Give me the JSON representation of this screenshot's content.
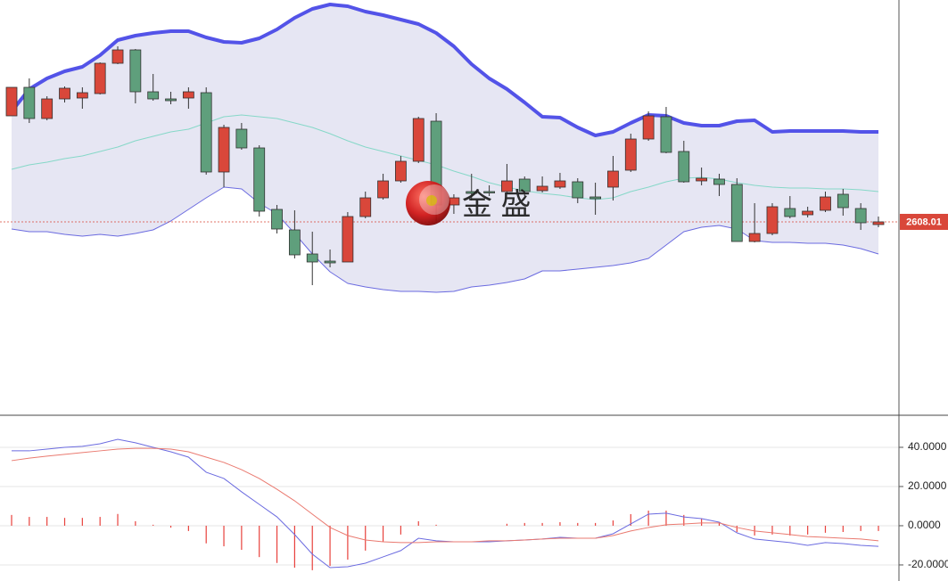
{
  "chart_data": [
    {
      "type": "candlestick",
      "candles": {
        "open": [
          2667.5,
          2683.5,
          2666,
          2677,
          2677.5,
          2680,
          2697,
          2704.5,
          2681,
          2677,
          2677.5,
          2680.5,
          2636,
          2660,
          2649.5,
          2615,
          2603.5,
          2590,
          2586,
          2585.5,
          2611,
          2621.5,
          2631,
          2642,
          2664.5,
          2617.5,
          2625,
          2625,
          2625,
          2632,
          2625.5,
          2627.5,
          2630.5,
          2622,
          2627.5,
          2637,
          2654.5,
          2667,
          2647.5,
          2631,
          2632,
          2629,
          2597,
          2601.5,
          2615.5,
          2612,
          2614.5,
          2623.5,
          2615.5,
          2606.5
        ],
        "high": [
          2683.5,
          2688.5,
          2678.5,
          2684,
          2683.5,
          2697.5,
          2706.5,
          2705,
          2691,
          2681,
          2683.5,
          2683.5,
          2662.5,
          2663.5,
          2651,
          2617.5,
          2614.5,
          2602.5,
          2592.5,
          2613.5,
          2625,
          2635,
          2645,
          2667,
          2669,
          2623.5,
          2635,
          2628.5,
          2640.5,
          2633.5,
          2633.5,
          2635.5,
          2632.5,
          2630,
          2645,
          2657.5,
          2670,
          2672.5,
          2653.5,
          2638.5,
          2635,
          2632.5,
          2618.5,
          2618.5,
          2622.5,
          2616.5,
          2625,
          2626.5,
          2618.5,
          2611
        ],
        "low": [
          2667.5,
          2663.5,
          2665,
          2675,
          2671.5,
          2679.5,
          2696.5,
          2674.5,
          2676,
          2674,
          2671.5,
          2634.5,
          2627.5,
          2648.5,
          2611,
          2601.5,
          2587.5,
          2572.5,
          2582.5,
          2585.5,
          2610,
          2620.5,
          2630,
          2641,
          2608.5,
          2612.5,
          2620,
          2622.5,
          2624,
          2622.5,
          2624.5,
          2626.5,
          2618.5,
          2612,
          2620,
          2636,
          2653.5,
          2646.5,
          2630,
          2628.5,
          2622.5,
          2597,
          2596.5,
          2600.5,
          2610,
          2610.5,
          2613.5,
          2611.5,
          2603.5,
          2605
        ],
        "close": [
          2683.5,
          2666,
          2677,
          2683,
          2680.5,
          2697,
          2704.5,
          2681,
          2677,
          2676,
          2681,
          2636,
          2661,
          2649.5,
          2614,
          2604,
          2589.5,
          2585.5,
          2585,
          2611,
          2621.5,
          2631,
          2642,
          2666,
          2617.5,
          2621.5,
          2624,
          2624.5,
          2631,
          2625,
          2628,
          2631,
          2621.5,
          2621,
          2636.5,
          2654.5,
          2667.5,
          2647,
          2630.5,
          2632.5,
          2629,
          2597,
          2601.5,
          2616.5,
          2611,
          2614,
          2622,
          2616,
          2607.5,
          2608.01
        ]
      },
      "up_color": "#d9473a",
      "down_color": "#5f9f7c",
      "band_fill": "#e6e6f3",
      "series": [
        {
          "color": "#5353e8",
          "values": [
            2670,
            2682.5,
            2688.5,
            2692.5,
            2695,
            2701.5,
            2710,
            2712.5,
            2714,
            2715,
            2715,
            2711.5,
            2709,
            2708.5,
            2711,
            2716,
            2722.5,
            2727.5,
            2730,
            2729,
            2726,
            2724,
            2721.5,
            2719,
            2714,
            2706.5,
            2696.5,
            2688.5,
            2682.5,
            2675,
            2667,
            2666.5,
            2661,
            2656.5,
            2658.5,
            2663.5,
            2668,
            2667.5,
            2663.5,
            2662,
            2662,
            2664.5,
            2665,
            2658.5,
            2659,
            2659,
            2659,
            2659,
            2658.5,
            2658.5
          ]
        },
        {
          "color": "#86d8c8",
          "values": [
            2637.5,
            2640,
            2641.5,
            2643.5,
            2645,
            2647.5,
            2650,
            2653.5,
            2656,
            2658.5,
            2660,
            2663.5,
            2667,
            2668,
            2667,
            2666,
            2663.5,
            2661,
            2657.5,
            2653.5,
            2650,
            2647.5,
            2645,
            2642.5,
            2640,
            2636.5,
            2633.5,
            2630,
            2627.5,
            2625.5,
            2624,
            2623,
            2621.5,
            2620.5,
            2621.5,
            2625,
            2627.5,
            2630.5,
            2632.5,
            2633,
            2632,
            2630,
            2628.5,
            2627.5,
            2627,
            2627,
            2626.5,
            2626.5,
            2626,
            2625
          ]
        },
        {
          "color": "#6b6be0",
          "values": [
            2604,
            2602.5,
            2602.5,
            2601,
            2600,
            2601,
            2600,
            2601.5,
            2603.5,
            2608.5,
            2615,
            2621.5,
            2627.5,
            2626.5,
            2618.5,
            2612.5,
            2601.5,
            2590,
            2580,
            2573.5,
            2571.5,
            2570,
            2569,
            2569,
            2568.5,
            2569,
            2571.5,
            2572.5,
            2574,
            2576,
            2580.5,
            2580.5,
            2581.5,
            2582.5,
            2583.5,
            2585,
            2587.5,
            2595,
            2602.5,
            2605,
            2606,
            2604,
            2597.5,
            2596.5,
            2596.5,
            2596,
            2596,
            2595,
            2593,
            2590
          ]
        }
      ],
      "ylim": [
        2500,
        2732.5
      ],
      "last_price": 2608.01,
      "last_price_color": "#d9473a",
      "watermark": "金 盛"
    },
    {
      "type": "macd",
      "histogram": {
        "color": "#e8413c",
        "values": [
          5.5,
          4.5,
          4.5,
          4,
          4,
          4.5,
          6,
          2.3,
          0.5,
          -1,
          -2.7,
          -9,
          -10.5,
          -12.3,
          -16,
          -19,
          -21.4,
          -22.7,
          -20.5,
          -17.3,
          -12.7,
          -8.2,
          -4.5,
          2.3,
          0.5,
          0,
          0,
          0,
          1,
          1.4,
          1.4,
          1.8,
          1.4,
          1.4,
          2.7,
          5.9,
          7.7,
          7.7,
          5.5,
          3.6,
          1.4,
          -3.2,
          -5,
          -4.5,
          -5,
          -4.5,
          -3.6,
          -3.2,
          -2.7,
          -2.7
        ]
      },
      "series": [
        {
          "color": "#6b6be0",
          "values": [
            38.2,
            38.2,
            39.1,
            40,
            40.5,
            41.8,
            44.1,
            42.3,
            40,
            37.7,
            35,
            27.3,
            24.1,
            17.3,
            10.9,
            4.5,
            -4.5,
            -14.5,
            -21.4,
            -20.9,
            -19.1,
            -15.9,
            -12.7,
            -6.4,
            -7.7,
            -8.2,
            -8.2,
            -8.2,
            -7.7,
            -7.3,
            -6.8,
            -5.9,
            -6.4,
            -6.4,
            -4.1,
            0.9,
            5.9,
            6.4,
            4.5,
            3.6,
            1.8,
            -3.6,
            -6.8,
            -7.7,
            -8.6,
            -10,
            -8.6,
            -9.1,
            -10,
            -10.5
          ]
        },
        {
          "color": "#ea7a70",
          "values": [
            33.2,
            34.5,
            35.5,
            36.4,
            37.3,
            38.2,
            39.1,
            39.5,
            39.5,
            39.1,
            37.7,
            35,
            32.3,
            28.6,
            24.1,
            18.6,
            12.7,
            5.9,
            -0.9,
            -5,
            -7.3,
            -8.2,
            -8.6,
            -8.6,
            -8.2,
            -8.2,
            -8.2,
            -7.7,
            -7.7,
            -7.3,
            -6.8,
            -6.4,
            -6.4,
            -6.4,
            -5,
            -2.7,
            -0.9,
            0.5,
            0.9,
            1.4,
            1.4,
            -0.9,
            -2.7,
            -3.6,
            -4.5,
            -5.5,
            -5.9,
            -6.4,
            -6.8,
            -7.7
          ]
        }
      ],
      "ylim": [
        -28.2,
        55.9
      ],
      "yticks": [
        {
          "value": 40,
          "label": "40.0000"
        },
        {
          "value": 20,
          "label": "20.0000"
        },
        {
          "value": 0,
          "label": "0.0000"
        },
        {
          "value": -20,
          "label": "-20.0000"
        }
      ],
      "grid": true
    }
  ]
}
